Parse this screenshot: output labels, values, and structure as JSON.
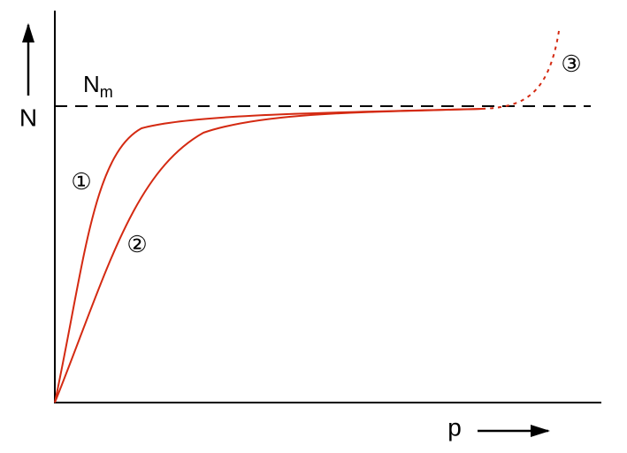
{
  "axes": {
    "y_label": "N",
    "x_label": "p"
  },
  "asymptote": {
    "label": "N",
    "subscript": "m"
  },
  "curves": [
    {
      "label": "①"
    },
    {
      "label": "②"
    },
    {
      "label": "③"
    }
  ]
}
